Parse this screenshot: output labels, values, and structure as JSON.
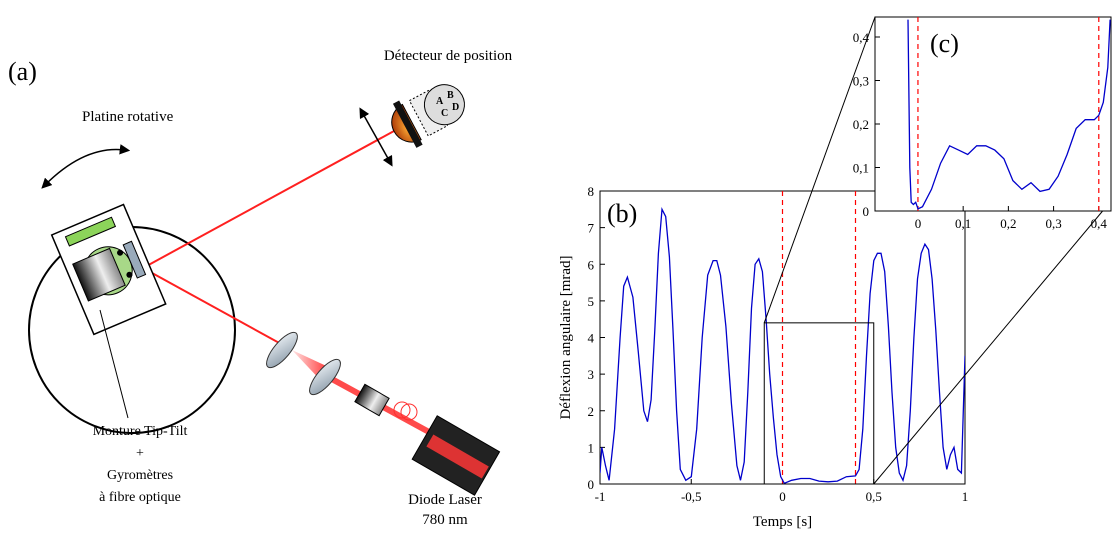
{
  "diagram": {
    "label": "(a)",
    "detector": "Détecteur de position",
    "quadrants": [
      "A",
      "B",
      "C",
      "D"
    ],
    "stage": "Platine rotative",
    "mount": [
      "Monture Tip-Tilt",
      "+",
      "Gyromètres",
      "à fibre optique"
    ],
    "laser": [
      "Diode Laser",
      "780 nm"
    ]
  },
  "chart_data": [
    {
      "type": "line",
      "label": "(b)",
      "xlabel": "Temps [s]",
      "ylabel": "Déflexion angulaire [mrad]",
      "color": "#0000cc",
      "x": [
        -1,
        -0.99,
        -0.97,
        -0.95,
        -0.92,
        -0.89,
        -0.87,
        -0.85,
        -0.82,
        -0.79,
        -0.76,
        -0.74,
        -0.72,
        -0.7,
        -0.68,
        -0.66,
        -0.64,
        -0.62,
        -0.6,
        -0.58,
        -0.56,
        -0.53,
        -0.5,
        -0.47,
        -0.44,
        -0.41,
        -0.38,
        -0.36,
        -0.34,
        -0.31,
        -0.28,
        -0.25,
        -0.23,
        -0.21,
        -0.19,
        -0.17,
        -0.15,
        -0.13,
        -0.11,
        -0.09,
        -0.07,
        -0.05,
        -0.03,
        -0.01,
        0.01,
        0.05,
        0.1,
        0.15,
        0.2,
        0.25,
        0.3,
        0.35,
        0.4,
        0.42,
        0.44,
        0.46,
        0.48,
        0.5,
        0.52,
        0.54,
        0.56,
        0.58,
        0.6,
        0.62,
        0.64,
        0.66,
        0.68,
        0.7,
        0.72,
        0.74,
        0.76,
        0.78,
        0.8,
        0.82,
        0.84,
        0.86,
        0.88,
        0.9,
        0.92,
        0.94,
        0.96,
        0.98,
        1
      ],
      "values": [
        0.3,
        1.0,
        0.5,
        0.1,
        1.5,
        4.0,
        5.4,
        5.65,
        5.1,
        3.6,
        2.0,
        1.7,
        2.3,
        4.2,
        6.3,
        7.5,
        7.3,
        6.2,
        4.2,
        2.0,
        0.4,
        0.1,
        0.2,
        1.5,
        4.0,
        5.7,
        6.1,
        6.1,
        5.7,
        4.3,
        2.2,
        0.5,
        0.1,
        0.6,
        2.5,
        4.8,
        6.0,
        6.15,
        5.8,
        4.5,
        3.0,
        1.8,
        0.8,
        0.2,
        0.02,
        0.1,
        0.15,
        0.15,
        0.08,
        0.06,
        0.08,
        0.2,
        0.22,
        0.4,
        1.5,
        3.5,
        5.2,
        6.1,
        6.3,
        6.3,
        5.8,
        4.3,
        2.5,
        1.0,
        0.3,
        0.1,
        0.5,
        2.0,
        4.0,
        5.6,
        6.3,
        6.55,
        6.4,
        5.6,
        4.2,
        2.5,
        1.0,
        0.4,
        0.8,
        1.0,
        0.4,
        0.3,
        3.5
      ],
      "xlim": [
        -1,
        1
      ],
      "ylim": [
        0,
        8
      ],
      "xticks": [
        -1,
        {
          "value": -0.5,
          "label": "-0,5"
        },
        0,
        {
          "value": 0.5,
          "label": "0,5"
        },
        1
      ],
      "yticks": [
        0,
        1,
        2,
        3,
        4,
        5,
        6,
        7,
        8
      ],
      "vlines": [
        0,
        0.4
      ],
      "vline_color": "#ff0000",
      "zoom_box": {
        "xlim": [
          -0.1,
          0.5
        ],
        "ylim": [
          0,
          4.4
        ]
      }
    },
    {
      "type": "line",
      "label": "(c)",
      "color": "#0000cc",
      "x": [
        -0.022,
        -0.018,
        -0.015,
        -0.01,
        -0.005,
        0,
        0.01,
        0.03,
        0.05,
        0.07,
        0.09,
        0.11,
        0.13,
        0.15,
        0.17,
        0.19,
        0.21,
        0.23,
        0.25,
        0.27,
        0.29,
        0.31,
        0.33,
        0.35,
        0.37,
        0.39,
        0.4,
        0.41,
        0.42,
        0.425
      ],
      "values": [
        0.44,
        0.1,
        0.02,
        0.015,
        0.02,
        0.005,
        0.01,
        0.05,
        0.11,
        0.15,
        0.14,
        0.13,
        0.15,
        0.15,
        0.14,
        0.12,
        0.07,
        0.05,
        0.065,
        0.045,
        0.05,
        0.08,
        0.13,
        0.19,
        0.21,
        0.21,
        0.22,
        0.25,
        0.33,
        0.44
      ],
      "xlim": [
        -0.095,
        0.427
      ],
      "ylim": [
        0,
        0.446
      ],
      "xticks": [
        0,
        {
          "value": 0.1,
          "label": "0,1"
        },
        {
          "value": 0.2,
          "label": "0,2"
        },
        {
          "value": 0.3,
          "label": "0,3"
        },
        {
          "value": 0.4,
          "label": "0,4"
        }
      ],
      "yticks": [
        0,
        {
          "value": 0.1,
          "label": "0,1"
        },
        {
          "value": 0.2,
          "label": "0,2"
        },
        {
          "value": 0.3,
          "label": "0,3"
        },
        {
          "value": 0.4,
          "label": "0,4"
        }
      ],
      "vlines": [
        0,
        0.4
      ],
      "vline_color": "#ff0000"
    }
  ]
}
